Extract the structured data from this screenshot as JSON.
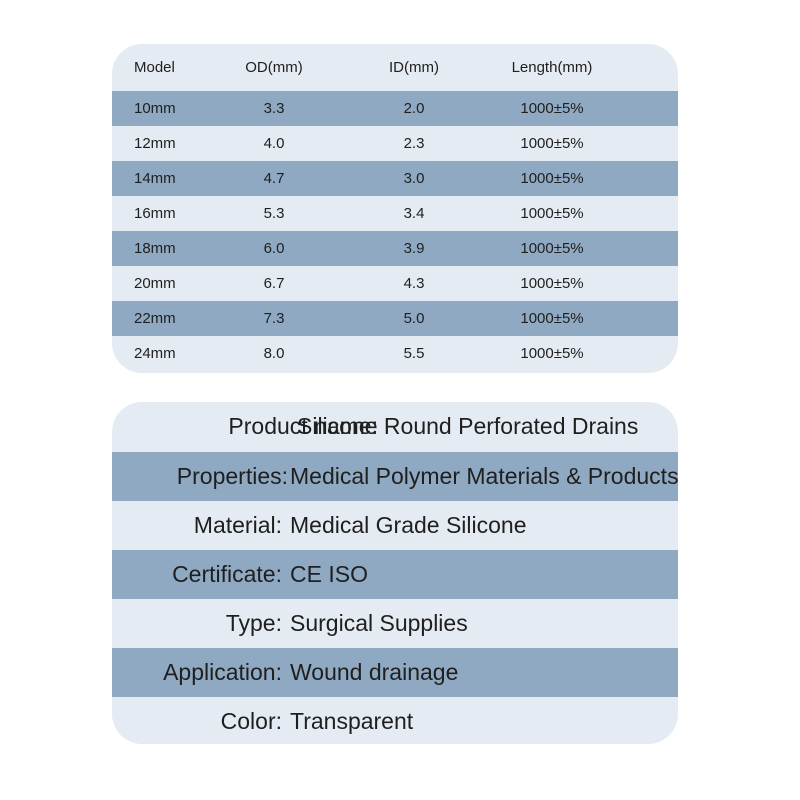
{
  "spec_table": {
    "headers": [
      "Model",
      "OD(mm)",
      "ID(mm)",
      "Length(mm)"
    ],
    "rows": [
      [
        "10mm",
        "3.3",
        "2.0",
        "1000±5%"
      ],
      [
        "12mm",
        "4.0",
        "2.3",
        "1000±5%"
      ],
      [
        "14mm",
        "4.7",
        "3.0",
        "1000±5%"
      ],
      [
        "16mm",
        "5.3",
        "3.4",
        "1000±5%"
      ],
      [
        "18mm",
        "6.0",
        "3.9",
        "1000±5%"
      ],
      [
        "20mm",
        "6.7",
        "4.3",
        "1000±5%"
      ],
      [
        "22mm",
        "7.3",
        "5.0",
        "1000±5%"
      ],
      [
        "24mm",
        "8.0",
        "5.5",
        "1000±5%"
      ]
    ]
  },
  "product_info": [
    {
      "label": "Product name:",
      "value": "Silicone Round Perforated Drains"
    },
    {
      "label": "Properties:",
      "value": "Medical Polymer Materials & Products"
    },
    {
      "label": "Material:",
      "value": "Medical Grade Silicone"
    },
    {
      "label": "Certificate:",
      "value": "CE ISO"
    },
    {
      "label": "Type:",
      "value": "Surgical Supplies"
    },
    {
      "label": "Application:",
      "value": "Wound drainage"
    },
    {
      "label": "Color:",
      "value": "Transparent"
    }
  ],
  "colors": {
    "panel_bg": "#e4ebf2",
    "band": "#8fa9c2",
    "text": "#1f1f1f"
  }
}
